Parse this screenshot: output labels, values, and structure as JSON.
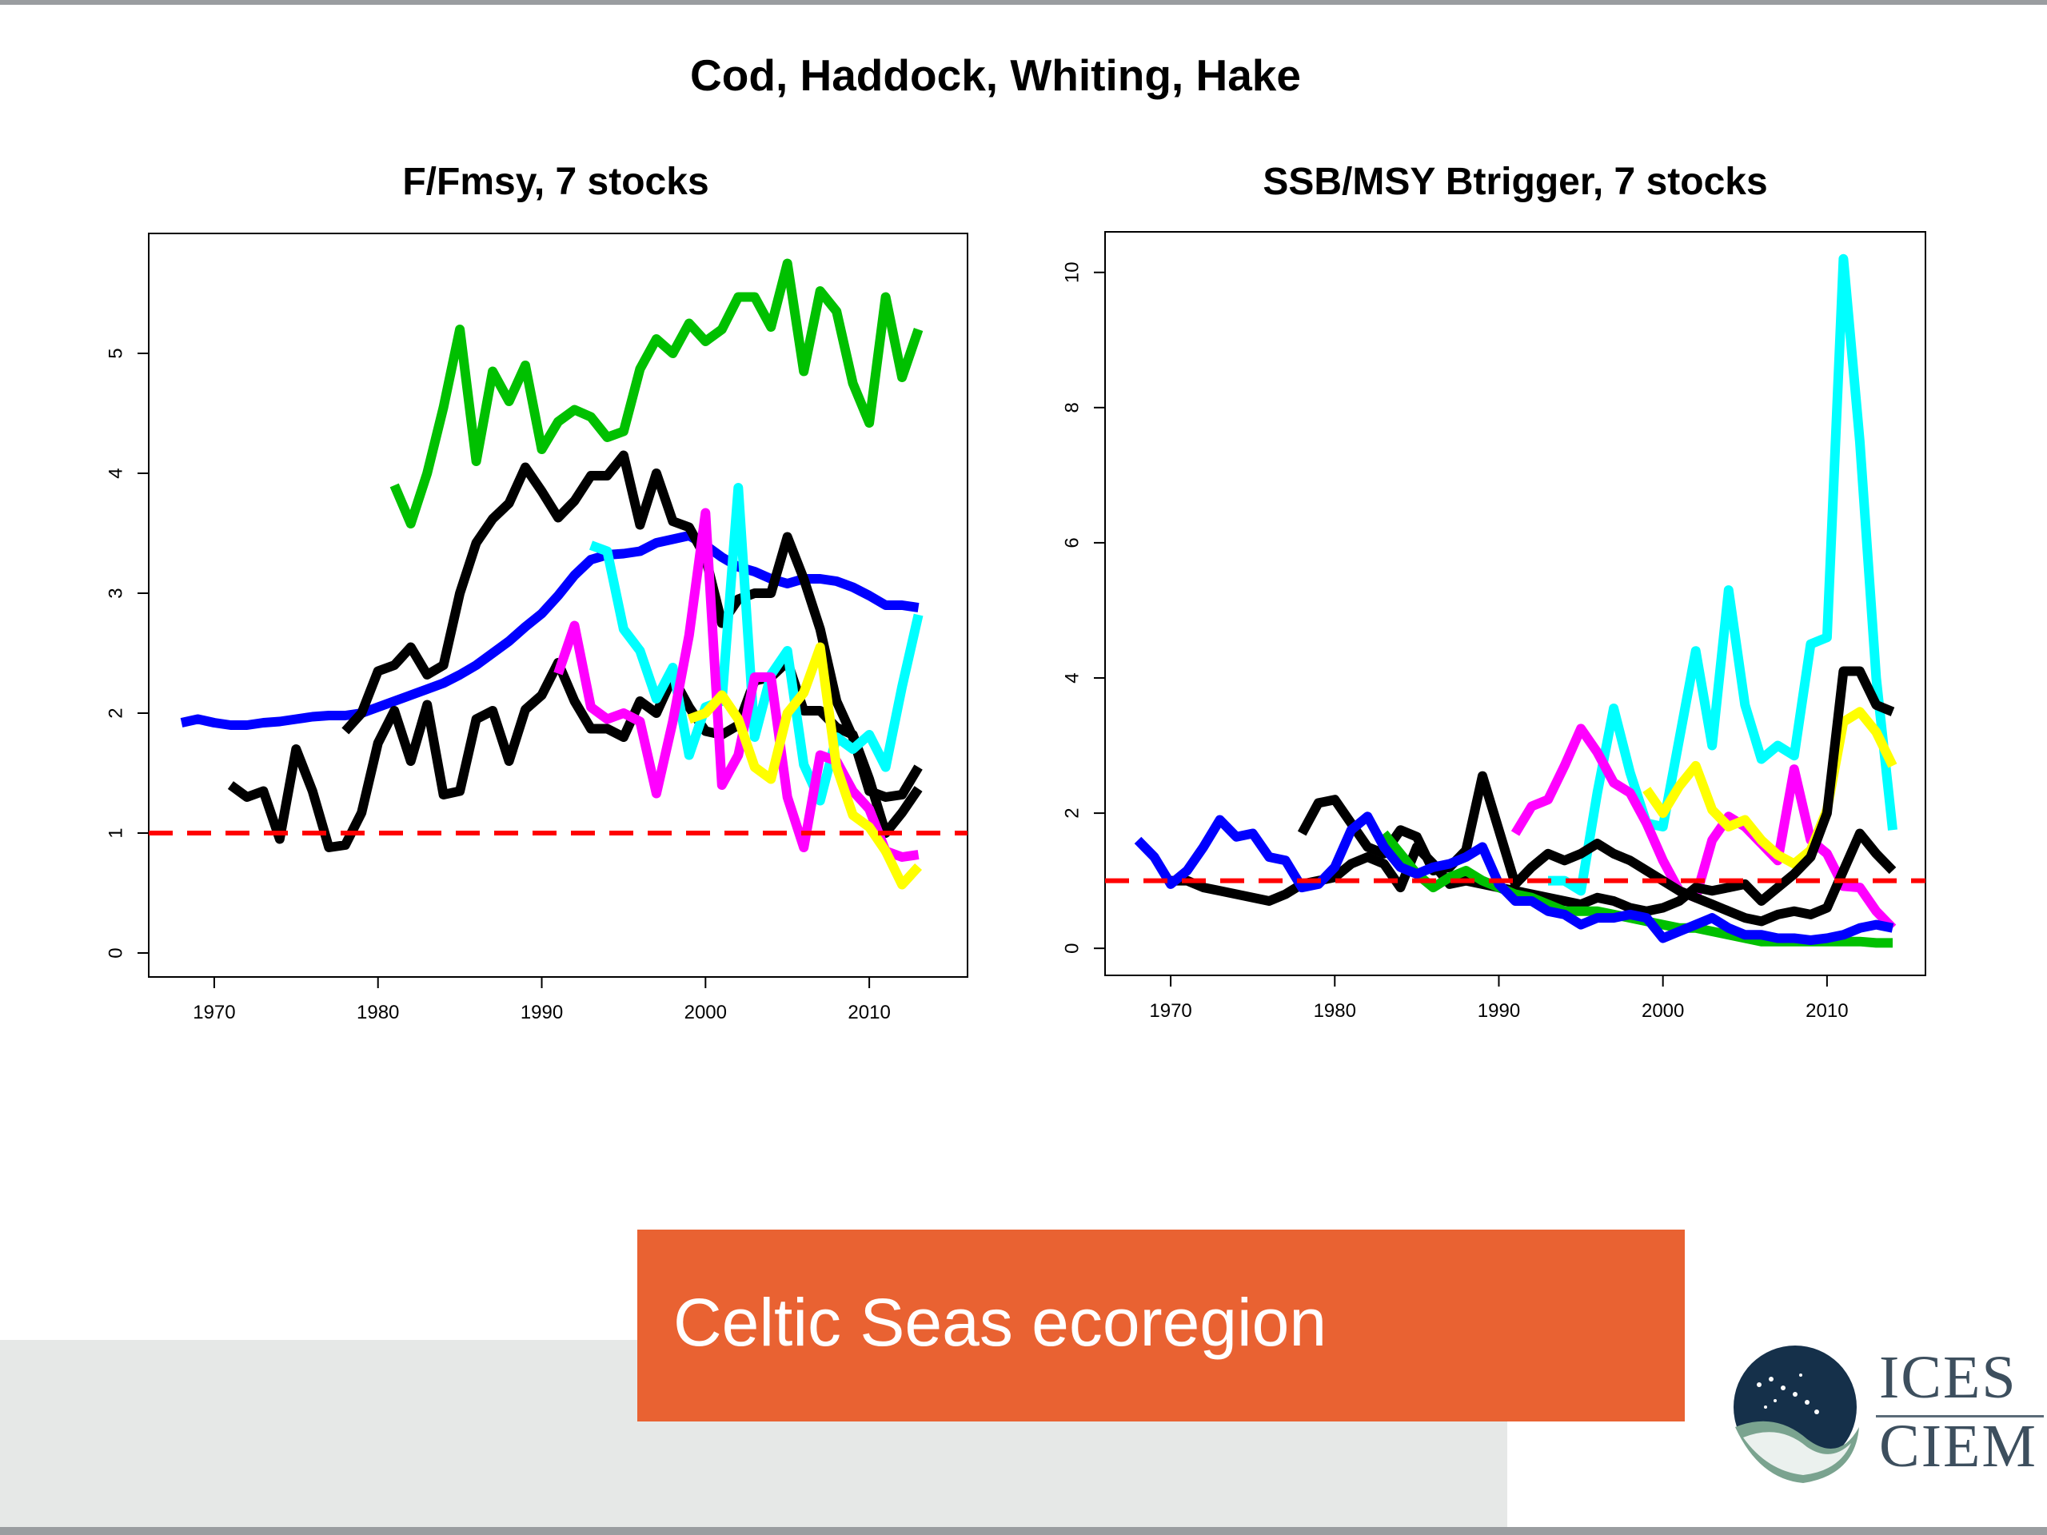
{
  "main_title": "Cod, Haddock, Whiting, Hake",
  "banner_text": "Celtic Seas ecoregion",
  "logo": {
    "line1": "ICES",
    "line2": "CIEM"
  },
  "colors": {
    "accent": "#e96232",
    "reference_line": "#ff0000"
  },
  "chart_data": [
    {
      "type": "line",
      "title": "F/Fmsy,  7 stocks",
      "xlabel": "",
      "ylabel": "",
      "xlim": [
        1966,
        2016
      ],
      "ylim": [
        -0.2,
        6.0
      ],
      "xticks": [
        1970,
        1980,
        1990,
        2000,
        2010
      ],
      "yticks": [
        0,
        1,
        2,
        3,
        4,
        5
      ],
      "reference_line": 1,
      "series": [
        {
          "name": "blue",
          "color": "#0000ff",
          "x": [
            1968,
            1969,
            1970,
            1971,
            1972,
            1973,
            1974,
            1975,
            1976,
            1977,
            1978,
            1979,
            1980,
            1981,
            1982,
            1983,
            1984,
            1985,
            1986,
            1987,
            1988,
            1989,
            1990,
            1991,
            1992,
            1993,
            1994,
            1995,
            1996,
            1997,
            1998,
            1999,
            2000,
            2001,
            2002,
            2003,
            2004,
            2005,
            2006,
            2007,
            2008,
            2009,
            2010,
            2011,
            2012,
            2013
          ],
          "y": [
            1.92,
            1.95,
            1.92,
            1.9,
            1.9,
            1.92,
            1.93,
            1.95,
            1.97,
            1.98,
            1.98,
            2.0,
            2.05,
            2.1,
            2.15,
            2.2,
            2.25,
            2.32,
            2.4,
            2.5,
            2.6,
            2.72,
            2.83,
            2.98,
            3.15,
            3.28,
            3.32,
            3.33,
            3.35,
            3.42,
            3.45,
            3.48,
            3.4,
            3.3,
            3.22,
            3.18,
            3.12,
            3.08,
            3.12,
            3.12,
            3.1,
            3.05,
            2.98,
            2.9,
            2.9,
            2.88
          ]
        },
        {
          "name": "green",
          "color": "#00c000",
          "x": [
            1981,
            1982,
            1983,
            1984,
            1985,
            1986,
            1987,
            1988,
            1989,
            1990,
            1991,
            1992,
            1993,
            1994,
            1995,
            1996,
            1997,
            1998,
            1999,
            2000,
            2001,
            2002,
            2003,
            2004,
            2005,
            2006,
            2007,
            2008,
            2009,
            2010,
            2011,
            2012,
            2013
          ],
          "y": [
            3.9,
            3.58,
            4.0,
            4.55,
            5.2,
            4.1,
            4.85,
            4.6,
            4.9,
            4.2,
            4.43,
            4.53,
            4.47,
            4.3,
            4.35,
            4.87,
            5.12,
            5.0,
            5.25,
            5.1,
            5.2,
            5.47,
            5.47,
            5.22,
            5.75,
            4.85,
            5.52,
            5.35,
            4.75,
            4.42,
            5.47,
            4.8,
            5.2
          ]
        },
        {
          "name": "black-upper",
          "color": "#000000",
          "x": [
            1978,
            1979,
            1980,
            1981,
            1982,
            1983,
            1984,
            1985,
            1986,
            1987,
            1988,
            1989,
            1990,
            1991,
            1992,
            1993,
            1994,
            1995,
            1996,
            1997,
            1998,
            1999,
            2000,
            2001,
            2002,
            2003,
            2004,
            2005,
            2006,
            2007,
            2008,
            2009,
            2010,
            2011,
            2012,
            2013
          ],
          "y": [
            1.85,
            2.0,
            2.35,
            2.4,
            2.55,
            2.32,
            2.4,
            3.0,
            3.42,
            3.62,
            3.75,
            4.05,
            3.85,
            3.63,
            3.77,
            3.98,
            3.98,
            4.15,
            3.57,
            4.0,
            3.6,
            3.55,
            3.3,
            2.75,
            2.95,
            3.0,
            3.0,
            3.47,
            3.12,
            2.7,
            2.1,
            1.8,
            1.35,
            1.3,
            1.32,
            1.55
          ]
        },
        {
          "name": "black-lower",
          "color": "#000000",
          "x": [
            1971,
            1972,
            1973,
            1974,
            1975,
            1976,
            1977,
            1978,
            1979,
            1980,
            1981,
            1982,
            1983,
            1984,
            1985,
            1986,
            1987,
            1988,
            1989,
            1990,
            1991,
            1992,
            1993,
            1994,
            1995,
            1996,
            1997,
            1998,
            1999,
            2000,
            2001,
            2002,
            2003,
            2004,
            2005,
            2006,
            2007,
            2008,
            2009,
            2010,
            2011,
            2012,
            2013
          ],
          "y": [
            1.4,
            1.3,
            1.35,
            0.95,
            1.7,
            1.35,
            0.88,
            0.9,
            1.17,
            1.75,
            2.02,
            1.6,
            2.07,
            1.32,
            1.35,
            1.95,
            2.02,
            1.6,
            2.03,
            2.15,
            2.42,
            2.1,
            1.87,
            1.87,
            1.8,
            2.1,
            2.0,
            2.3,
            2.05,
            1.85,
            1.82,
            1.9,
            2.27,
            2.3,
            2.43,
            2.02,
            2.02,
            1.88,
            1.82,
            1.45,
            1.0,
            1.17,
            1.37
          ]
        },
        {
          "name": "cyan",
          "color": "#00ffff",
          "x": [
            1993,
            1994,
            1995,
            1996,
            1997,
            1998,
            1999,
            2000,
            2001,
            2002,
            2003,
            2004,
            2005,
            2006,
            2007,
            2008,
            2009,
            2010,
            2011,
            2012,
            2013
          ],
          "y": [
            3.4,
            3.35,
            2.7,
            2.52,
            2.12,
            2.38,
            1.65,
            2.05,
            2.1,
            3.88,
            1.8,
            2.32,
            2.52,
            1.57,
            1.27,
            1.8,
            1.7,
            1.82,
            1.55,
            2.22,
            2.82
          ]
        },
        {
          "name": "magenta",
          "color": "#ff00ff",
          "x": [
            1991,
            1992,
            1993,
            1994,
            1995,
            1996,
            1997,
            1998,
            1999,
            2000,
            2001,
            2002,
            2003,
            2004,
            2005,
            2006,
            2007,
            2008,
            2009,
            2010,
            2011,
            2012,
            2013
          ],
          "y": [
            2.33,
            2.73,
            2.05,
            1.95,
            2.0,
            1.93,
            1.33,
            1.93,
            2.65,
            3.67,
            1.4,
            1.65,
            2.3,
            2.3,
            1.3,
            0.88,
            1.65,
            1.6,
            1.35,
            1.2,
            0.85,
            0.8,
            0.82
          ]
        },
        {
          "name": "yellow",
          "color": "#ffff00",
          "x": [
            1999,
            2000,
            2001,
            2002,
            2003,
            2004,
            2005,
            2006,
            2007,
            2008,
            2009,
            2010,
            2011,
            2012,
            2013
          ],
          "y": [
            1.95,
            2.0,
            2.15,
            1.95,
            1.55,
            1.45,
            2.0,
            2.17,
            2.55,
            1.55,
            1.15,
            1.05,
            0.85,
            0.57,
            0.72
          ]
        }
      ]
    },
    {
      "type": "line",
      "title": "SSB/MSY Btrigger, 7 stocks",
      "xlabel": "",
      "ylabel": "",
      "xlim": [
        1966,
        2016
      ],
      "ylim": [
        -0.4,
        10.6
      ],
      "xticks": [
        1970,
        1980,
        1990,
        2000,
        2010
      ],
      "yticks": [
        0,
        2,
        4,
        6,
        8,
        10
      ],
      "reference_line": 1,
      "series": [
        {
          "name": "cyan",
          "color": "#00ffff",
          "x": [
            1993,
            1994,
            1995,
            1996,
            1997,
            1998,
            1999,
            2000,
            2001,
            2002,
            2003,
            2004,
            2005,
            2006,
            2007,
            2008,
            2009,
            2010,
            2011,
            2012,
            2013,
            2014
          ],
          "y": [
            1.0,
            1.0,
            0.85,
            2.3,
            3.55,
            2.6,
            1.85,
            1.8,
            3.1,
            4.4,
            3.0,
            5.3,
            3.6,
            2.8,
            3.0,
            2.85,
            4.5,
            4.6,
            10.2,
            7.5,
            4.0,
            1.75
          ]
        },
        {
          "name": "magenta",
          "color": "#ff00ff",
          "x": [
            1991,
            1992,
            1993,
            1994,
            1995,
            1996,
            1997,
            1998,
            1999,
            2000,
            2001,
            2002,
            2003,
            2004,
            2005,
            2006,
            2007,
            2008,
            2009,
            2010,
            2011,
            2012,
            2013,
            2014
          ],
          "y": [
            1.7,
            2.1,
            2.2,
            2.7,
            3.25,
            2.9,
            2.45,
            2.3,
            1.85,
            1.3,
            0.85,
            0.75,
            1.6,
            1.95,
            1.8,
            1.55,
            1.3,
            2.65,
            1.6,
            1.4,
            0.92,
            0.9,
            0.55,
            0.3
          ]
        },
        {
          "name": "yellow",
          "color": "#ffff00",
          "x": [
            1999,
            2000,
            2001,
            2002,
            2003,
            2004,
            2005,
            2006,
            2007,
            2008,
            2009,
            2010,
            2011,
            2012,
            2013,
            2014
          ],
          "y": [
            2.35,
            2.0,
            2.4,
            2.7,
            2.05,
            1.8,
            1.9,
            1.6,
            1.38,
            1.25,
            1.45,
            2.05,
            3.35,
            3.5,
            3.2,
            2.7
          ]
        },
        {
          "name": "black-a",
          "color": "#000000",
          "x": [
            1978,
            1979,
            1980,
            1981,
            1982,
            1983,
            1984,
            1985,
            1986,
            1987,
            1988,
            1989,
            1990,
            1991,
            1992,
            1993,
            1994,
            1995,
            1996,
            1997,
            1998,
            1999,
            2000,
            2001,
            2002,
            2003,
            2004,
            2005,
            2006,
            2007,
            2008,
            2009,
            2010,
            2011,
            2012,
            2013,
            2014
          ],
          "y": [
            1.7,
            2.15,
            2.2,
            1.85,
            1.5,
            1.4,
            1.75,
            1.65,
            1.15,
            1.2,
            1.45,
            2.55,
            1.75,
            0.95,
            1.2,
            1.4,
            1.3,
            1.4,
            1.55,
            1.4,
            1.3,
            1.15,
            1.0,
            0.85,
            0.75,
            0.65,
            0.55,
            0.45,
            0.4,
            0.5,
            0.55,
            0.5,
            0.6,
            1.15,
            1.7,
            1.4,
            1.15
          ]
        },
        {
          "name": "black-b",
          "color": "#000000",
          "x": [
            1970,
            1971,
            1972,
            1973,
            1974,
            1975,
            1976,
            1977,
            1978,
            1979,
            1980,
            1981,
            1982,
            1983,
            1984,
            1985,
            1986,
            1987,
            1988,
            1989,
            1990,
            1991,
            1992,
            1993,
            1994,
            1995,
            1996,
            1997,
            1998,
            1999,
            2000,
            2001,
            2002,
            2003,
            2004,
            2005,
            2006,
            2007,
            2008,
            2009,
            2010,
            2011,
            2012,
            2013,
            2014
          ],
          "y": [
            1.0,
            1.0,
            0.9,
            0.85,
            0.8,
            0.75,
            0.7,
            0.8,
            0.95,
            1.0,
            1.05,
            1.25,
            1.35,
            1.25,
            0.9,
            1.5,
            1.25,
            0.95,
            1.0,
            0.95,
            0.9,
            0.85,
            0.8,
            0.75,
            0.7,
            0.65,
            0.75,
            0.7,
            0.6,
            0.55,
            0.6,
            0.7,
            0.9,
            0.85,
            0.9,
            0.95,
            0.7,
            0.9,
            1.1,
            1.35,
            2.0,
            4.1,
            4.1,
            3.6,
            3.5
          ]
        },
        {
          "name": "green",
          "color": "#00c000",
          "x": [
            1983,
            1984,
            1985,
            1986,
            1987,
            1988,
            1989,
            1990,
            1991,
            1992,
            1993,
            1994,
            1995,
            1996,
            1997,
            1998,
            1999,
            2000,
            2001,
            2002,
            2003,
            2004,
            2005,
            2006,
            2007,
            2008,
            2009,
            2010,
            2011,
            2012,
            2013,
            2014
          ],
          "y": [
            1.7,
            1.4,
            1.1,
            0.9,
            1.05,
            1.15,
            1.0,
            0.9,
            0.8,
            0.75,
            0.65,
            0.55,
            0.55,
            0.55,
            0.5,
            0.45,
            0.4,
            0.35,
            0.3,
            0.3,
            0.25,
            0.2,
            0.15,
            0.1,
            0.1,
            0.1,
            0.1,
            0.1,
            0.1,
            0.1,
            0.08,
            0.08
          ]
        },
        {
          "name": "blue",
          "color": "#0000ff",
          "x": [
            1968,
            1969,
            1970,
            1971,
            1972,
            1973,
            1974,
            1975,
            1976,
            1977,
            1978,
            1979,
            1980,
            1981,
            1982,
            1983,
            1984,
            1985,
            1986,
            1987,
            1988,
            1989,
            1990,
            1991,
            1992,
            1993,
            1994,
            1995,
            1996,
            1997,
            1998,
            1999,
            2000,
            2001,
            2002,
            2003,
            2004,
            2005,
            2006,
            2007,
            2008,
            2009,
            2010,
            2011,
            2012,
            2013,
            2014
          ],
          "y": [
            1.6,
            1.35,
            0.95,
            1.15,
            1.5,
            1.9,
            1.65,
            1.7,
            1.35,
            1.3,
            0.9,
            0.95,
            1.2,
            1.75,
            1.95,
            1.5,
            1.2,
            1.1,
            1.2,
            1.25,
            1.35,
            1.5,
            0.95,
            0.7,
            0.7,
            0.55,
            0.5,
            0.35,
            0.45,
            0.45,
            0.5,
            0.45,
            0.15,
            0.25,
            0.35,
            0.45,
            0.3,
            0.2,
            0.2,
            0.15,
            0.15,
            0.12,
            0.15,
            0.2,
            0.3,
            0.35,
            0.3
          ]
        }
      ]
    }
  ]
}
